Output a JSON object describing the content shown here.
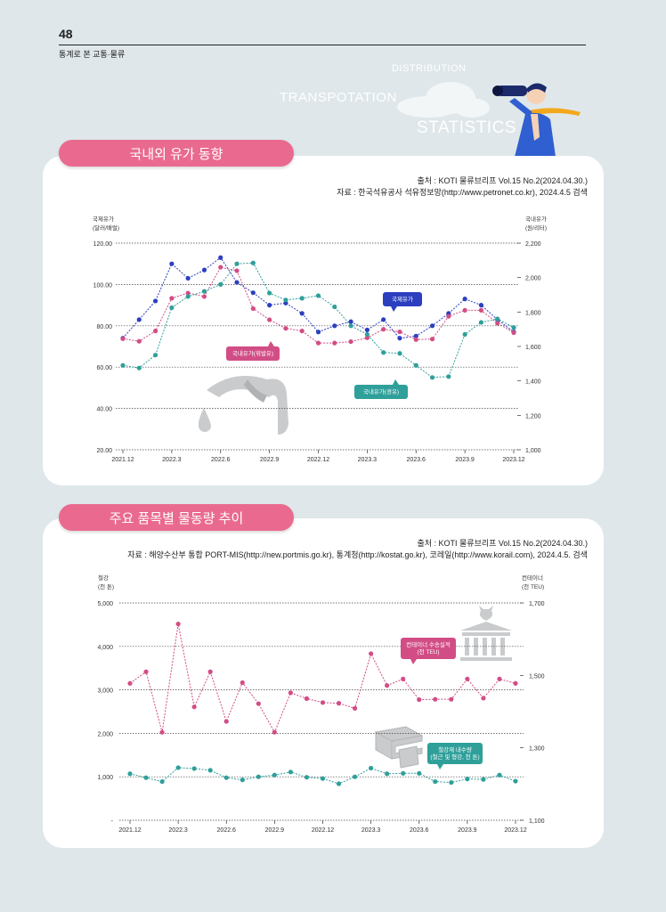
{
  "page": {
    "number": "48",
    "category": "통계로 본 교통·물류",
    "deco_words": [
      "DISTRIBUTION",
      "TRANSPOTATION",
      "STATISTICS"
    ]
  },
  "section1": {
    "title": "국내외 유가 동향",
    "source_lines": [
      "출처 : KOTI 물류브리프 Vol.15 No.2(2024.04.30.)",
      "자료 : 한국석유공사 석유정보망(http://www.petronet.co.kr), 2024.4.5 검색"
    ]
  },
  "section2": {
    "title": "주요 품목별 물동량 추이",
    "source_lines": [
      "출처 : KOTI 물류브리프 Vol.15 No.2(2024.04.30.)",
      "자료 : 해양수산부 통합 PORT-MIS(http://new.portmis.go.kr), 통계청(http://kostat.go.kr), 코레일(http://www.korail.com), 2024.4.5. 검색"
    ]
  },
  "colors": {
    "pink": "#ea6a8f",
    "navy": "#2b3fbf",
    "teal": "#2f9f9a",
    "magenta": "#d24d85",
    "grid": "#444444"
  },
  "chart_data": [
    {
      "type": "line",
      "left_axis_title": [
        "국제유가",
        "(달러/배럴)"
      ],
      "right_axis_title": [
        "국내유가",
        "(원/리터)"
      ],
      "ylim_left": [
        20,
        120
      ],
      "left_ticks": [
        "120.00",
        "100.00",
        "80.00",
        "60.00",
        "40.00",
        "20.00"
      ],
      "ylim_right": [
        1000,
        2200
      ],
      "right_ticks": [
        "2,200",
        "2,000",
        "1,800",
        "1,600",
        "1,400",
        "1,200",
        "1,000"
      ],
      "x_tick_labels": [
        "2021.12",
        "2022.3",
        "2022.6",
        "2022.9",
        "2022.12",
        "2023.3",
        "2023.6",
        "2023.9",
        "2023.12"
      ],
      "x": [
        "2021.12",
        "2022.1",
        "2022.2",
        "2022.3",
        "2022.4",
        "2022.5",
        "2022.6",
        "2022.7",
        "2022.8",
        "2022.9",
        "2022.10",
        "2022.11",
        "2022.12",
        "2023.1",
        "2023.2",
        "2023.3",
        "2023.4",
        "2023.5",
        "2023.6",
        "2023.7",
        "2023.8",
        "2023.9",
        "2023.10",
        "2023.11",
        "2023.12"
      ],
      "series": [
        {
          "name": "국제유가",
          "axis": "left",
          "color": "#2b3fbf",
          "values": [
            74,
            83,
            92,
            110,
            103,
            107,
            113,
            101,
            96,
            90,
            91,
            86,
            77,
            80,
            82,
            78,
            83,
            74,
            75,
            80,
            86,
            93,
            90,
            83,
            77
          ]
        },
        {
          "name": "국내유가(휘발유)",
          "axis": "right",
          "color": "#d24d85",
          "values": [
            1645,
            1630,
            1690,
            1880,
            1910,
            1890,
            2060,
            2040,
            1820,
            1755,
            1705,
            1690,
            1620,
            1620,
            1628,
            1650,
            1700,
            1685,
            1640,
            1643,
            1775,
            1810,
            1810,
            1735,
            1680
          ]
        },
        {
          "name": "국내유가(경유)",
          "axis": "right",
          "color": "#2f9f9a",
          "values": [
            1490,
            1475,
            1550,
            1825,
            1890,
            1920,
            1960,
            2080,
            2085,
            1910,
            1870,
            1880,
            1895,
            1830,
            1720,
            1670,
            1565,
            1560,
            1490,
            1420,
            1425,
            1670,
            1740,
            1760,
            1710
          ]
        }
      ],
      "callouts": [
        {
          "text": "국제유가",
          "series": 0
        },
        {
          "text": "국내유가(휘발유)",
          "series": 1
        },
        {
          "text": "국내유가(경유)",
          "series": 2
        }
      ]
    },
    {
      "type": "line",
      "left_axis_title": [
        "철강",
        "(천 톤)"
      ],
      "right_axis_title": [
        "컨테이너",
        "(천 TEU)"
      ],
      "ylim_left": [
        0,
        5000
      ],
      "left_ticks": [
        "5,000",
        "4,000",
        "3,000",
        "2,000",
        "1,000",
        "-"
      ],
      "ylim_right": [
        1100,
        1700
      ],
      "right_ticks": [
        "1,700",
        "1,500",
        "1,300",
        "1,100"
      ],
      "x_tick_labels": [
        "2021.12",
        "2022.3",
        "2022.6",
        "2022.9",
        "2022.12",
        "2023.3",
        "2023.6",
        "2023.9",
        "2023.12"
      ],
      "x": [
        "2021.12",
        "2022.1",
        "2022.2",
        "2022.3",
        "2022.4",
        "2022.5",
        "2022.6",
        "2022.7",
        "2022.8",
        "2022.9",
        "2022.10",
        "2022.11",
        "2022.12",
        "2023.1",
        "2023.2",
        "2023.3",
        "2023.4",
        "2023.5",
        "2023.6",
        "2023.7",
        "2023.8",
        "2023.9",
        "2023.10",
        "2023.11",
        "2023.12"
      ],
      "series": [
        {
          "name": "컨테이너 수송실적 (천 TEU)",
          "axis": "right",
          "color": "#d24d85",
          "values": [
            1478,
            1510,
            1343,
            1642,
            1413,
            1510,
            1373,
            1480,
            1422,
            1343,
            1452,
            1436,
            1425,
            1423,
            1409,
            1560,
            1472,
            1490,
            1433,
            1434,
            1434,
            1490,
            1437,
            1490,
            1478
          ]
        },
        {
          "name": "철강재 내수량 (철근 및 형강, 천 톤)",
          "axis": "left",
          "color": "#2f9f9a",
          "values": [
            1070,
            980,
            890,
            1210,
            1190,
            1150,
            980,
            930,
            1000,
            1040,
            1110,
            990,
            960,
            840,
            1000,
            1200,
            1070,
            1080,
            1080,
            890,
            870,
            950,
            940,
            1040,
            900
          ]
        }
      ],
      "callouts": [
        {
          "text": [
            "컨테이너 수송실적",
            "(천 TEU)"
          ],
          "series": 0
        },
        {
          "text": [
            "철강재 내수량",
            "(철근 및 형강, 천 톤)"
          ],
          "series": 1
        }
      ]
    }
  ]
}
